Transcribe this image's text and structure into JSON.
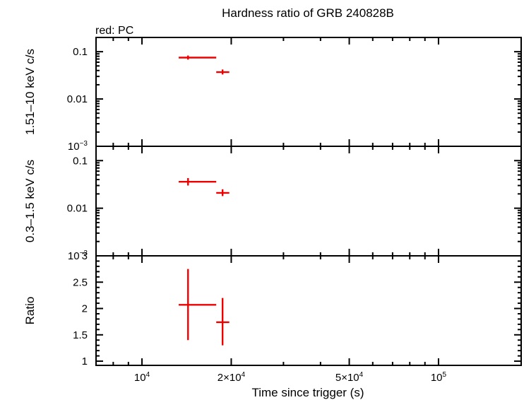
{
  "chart_data": {
    "title": "Hardness ratio of GRB 240828B",
    "subtitle": "red: PC",
    "xlabel": "Time since trigger (s)",
    "x_scale": "log",
    "xlim": [
      7000,
      190000
    ],
    "x_ticks": [
      {
        "value": 10000,
        "base": "10",
        "exp": "4",
        "mult": ""
      },
      {
        "value": 20000,
        "base": "10",
        "exp": "4",
        "mult": "2×"
      },
      {
        "value": 50000,
        "base": "10",
        "exp": "4",
        "mult": "5×"
      },
      {
        "value": 100000,
        "base": "10",
        "exp": "5",
        "mult": ""
      }
    ],
    "panels": [
      {
        "id": "hard",
        "type": "scatter",
        "ylabel": "1.51–10 keV c/s",
        "y_scale": "log",
        "ylim": [
          0.001,
          0.2
        ],
        "y_ticks": [
          {
            "value": 0.1,
            "label": "0.1"
          },
          {
            "value": 0.01,
            "label": "0.01"
          },
          {
            "value": 0.001,
            "base": "10",
            "exp": "−3"
          }
        ],
        "color": "#ee0000",
        "points": [
          {
            "x": 14300,
            "xlo": 13300,
            "xhi": 17800,
            "y": 0.075,
            "ylo": 0.068,
            "yhi": 0.083
          },
          {
            "x": 18700,
            "xlo": 17800,
            "xhi": 19700,
            "y": 0.037,
            "ylo": 0.033,
            "yhi": 0.042
          }
        ]
      },
      {
        "id": "soft",
        "type": "scatter",
        "ylabel": "0.3–1.5 keV c/s",
        "y_scale": "log",
        "ylim": [
          0.001,
          0.2
        ],
        "y_ticks": [
          {
            "value": 0.1,
            "label": "0.1"
          },
          {
            "value": 0.01,
            "label": "0.01"
          },
          {
            "value": 0.001,
            "base": "10",
            "exp": "−3"
          }
        ],
        "color": "#ee0000",
        "points": [
          {
            "x": 14300,
            "xlo": 13300,
            "xhi": 17800,
            "y": 0.036,
            "ylo": 0.03,
            "yhi": 0.043
          },
          {
            "x": 18700,
            "xlo": 17800,
            "xhi": 19700,
            "y": 0.021,
            "ylo": 0.018,
            "yhi": 0.025
          }
        ]
      },
      {
        "id": "ratio",
        "type": "scatter",
        "ylabel": "Ratio",
        "y_scale": "linear",
        "ylim": [
          0.92,
          3.0
        ],
        "y_ticks": [
          {
            "value": 1,
            "label": "1"
          },
          {
            "value": 1.5,
            "label": "1.5"
          },
          {
            "value": 2,
            "label": "2"
          },
          {
            "value": 2.5,
            "label": "2.5"
          },
          {
            "value": 3,
            "label": "3"
          }
        ],
        "color": "#ee0000",
        "points": [
          {
            "x": 14300,
            "xlo": 13300,
            "xhi": 17800,
            "y": 2.07,
            "ylo": 1.4,
            "yhi": 2.75
          },
          {
            "x": 18700,
            "xlo": 17800,
            "xhi": 19700,
            "y": 1.74,
            "ylo": 1.3,
            "yhi": 2.2
          }
        ]
      }
    ]
  }
}
